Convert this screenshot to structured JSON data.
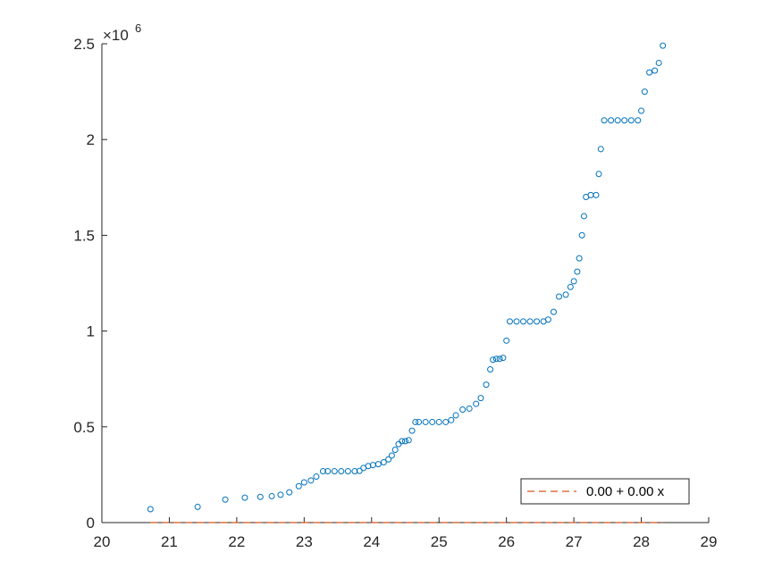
{
  "chart_data": {
    "type": "scatter",
    "title": "",
    "xlabel": "",
    "ylabel": "",
    "xlim": [
      20,
      29
    ],
    "ylim": [
      0,
      2500000
    ],
    "x_ticks": [
      "20",
      "21",
      "22",
      "23",
      "24",
      "25",
      "26",
      "27",
      "28",
      "29"
    ],
    "y_ticks": [
      "0",
      "0.5",
      "1",
      "1.5",
      "2",
      "2.5"
    ],
    "y_exponent": {
      "base": "×10",
      "power": "6"
    },
    "grid": false,
    "legend": {
      "placement": "bottom-right",
      "entries": [
        "0.00 + 0.00 x"
      ]
    },
    "series": [
      {
        "marker": "open-circle",
        "color": "#0072BD",
        "points": [
          [
            20.72,
            70000
          ],
          [
            21.42,
            82000
          ],
          [
            21.83,
            120000
          ],
          [
            22.12,
            130000
          ],
          [
            22.35,
            134000
          ],
          [
            22.52,
            138000
          ],
          [
            22.65,
            145000
          ],
          [
            22.78,
            158000
          ],
          [
            22.92,
            190000
          ],
          [
            23.0,
            210000
          ],
          [
            23.1,
            220000
          ],
          [
            23.18,
            240000
          ],
          [
            23.28,
            268000
          ],
          [
            23.35,
            268000
          ],
          [
            23.45,
            268000
          ],
          [
            23.55,
            268000
          ],
          [
            23.65,
            268000
          ],
          [
            23.75,
            268000
          ],
          [
            23.82,
            270000
          ],
          [
            23.88,
            285000
          ],
          [
            23.95,
            295000
          ],
          [
            24.02,
            300000
          ],
          [
            24.1,
            305000
          ],
          [
            24.18,
            315000
          ],
          [
            24.25,
            330000
          ],
          [
            24.3,
            350000
          ],
          [
            24.35,
            380000
          ],
          [
            24.4,
            410000
          ],
          [
            24.45,
            425000
          ],
          [
            24.5,
            425000
          ],
          [
            24.55,
            430000
          ],
          [
            24.6,
            480000
          ],
          [
            24.65,
            525000
          ],
          [
            24.7,
            525000
          ],
          [
            24.8,
            525000
          ],
          [
            24.9,
            525000
          ],
          [
            25.0,
            525000
          ],
          [
            25.1,
            525000
          ],
          [
            25.18,
            535000
          ],
          [
            25.25,
            560000
          ],
          [
            25.35,
            590000
          ],
          [
            25.45,
            595000
          ],
          [
            25.55,
            620000
          ],
          [
            25.62,
            650000
          ],
          [
            25.7,
            720000
          ],
          [
            25.76,
            800000
          ],
          [
            25.8,
            850000
          ],
          [
            25.85,
            855000
          ],
          [
            25.9,
            855000
          ],
          [
            25.95,
            860000
          ],
          [
            26.0,
            950000
          ],
          [
            26.05,
            1050000
          ],
          [
            26.15,
            1050000
          ],
          [
            26.25,
            1050000
          ],
          [
            26.35,
            1050000
          ],
          [
            26.45,
            1050000
          ],
          [
            26.55,
            1050000
          ],
          [
            26.62,
            1060000
          ],
          [
            26.7,
            1100000
          ],
          [
            26.78,
            1180000
          ],
          [
            26.88,
            1190000
          ],
          [
            26.95,
            1230000
          ],
          [
            27.0,
            1260000
          ],
          [
            27.05,
            1310000
          ],
          [
            27.08,
            1380000
          ],
          [
            27.12,
            1500000
          ],
          [
            27.15,
            1600000
          ],
          [
            27.18,
            1700000
          ],
          [
            27.25,
            1710000
          ],
          [
            27.33,
            1710000
          ],
          [
            27.37,
            1820000
          ],
          [
            27.4,
            1950000
          ],
          [
            27.45,
            2100000
          ],
          [
            27.55,
            2100000
          ],
          [
            27.65,
            2100000
          ],
          [
            27.75,
            2100000
          ],
          [
            27.85,
            2100000
          ],
          [
            27.95,
            2100000
          ],
          [
            28.0,
            2150000
          ],
          [
            28.05,
            2250000
          ],
          [
            28.12,
            2350000
          ],
          [
            28.2,
            2360000
          ],
          [
            28.26,
            2400000
          ],
          [
            28.32,
            2490000
          ]
        ]
      }
    ],
    "fit_line": {
      "label": "0.00 + 0.00 x",
      "style": "dashed",
      "color": "#D95319",
      "x": [
        20.72,
        28.32
      ],
      "y": [
        0,
        0
      ]
    }
  }
}
